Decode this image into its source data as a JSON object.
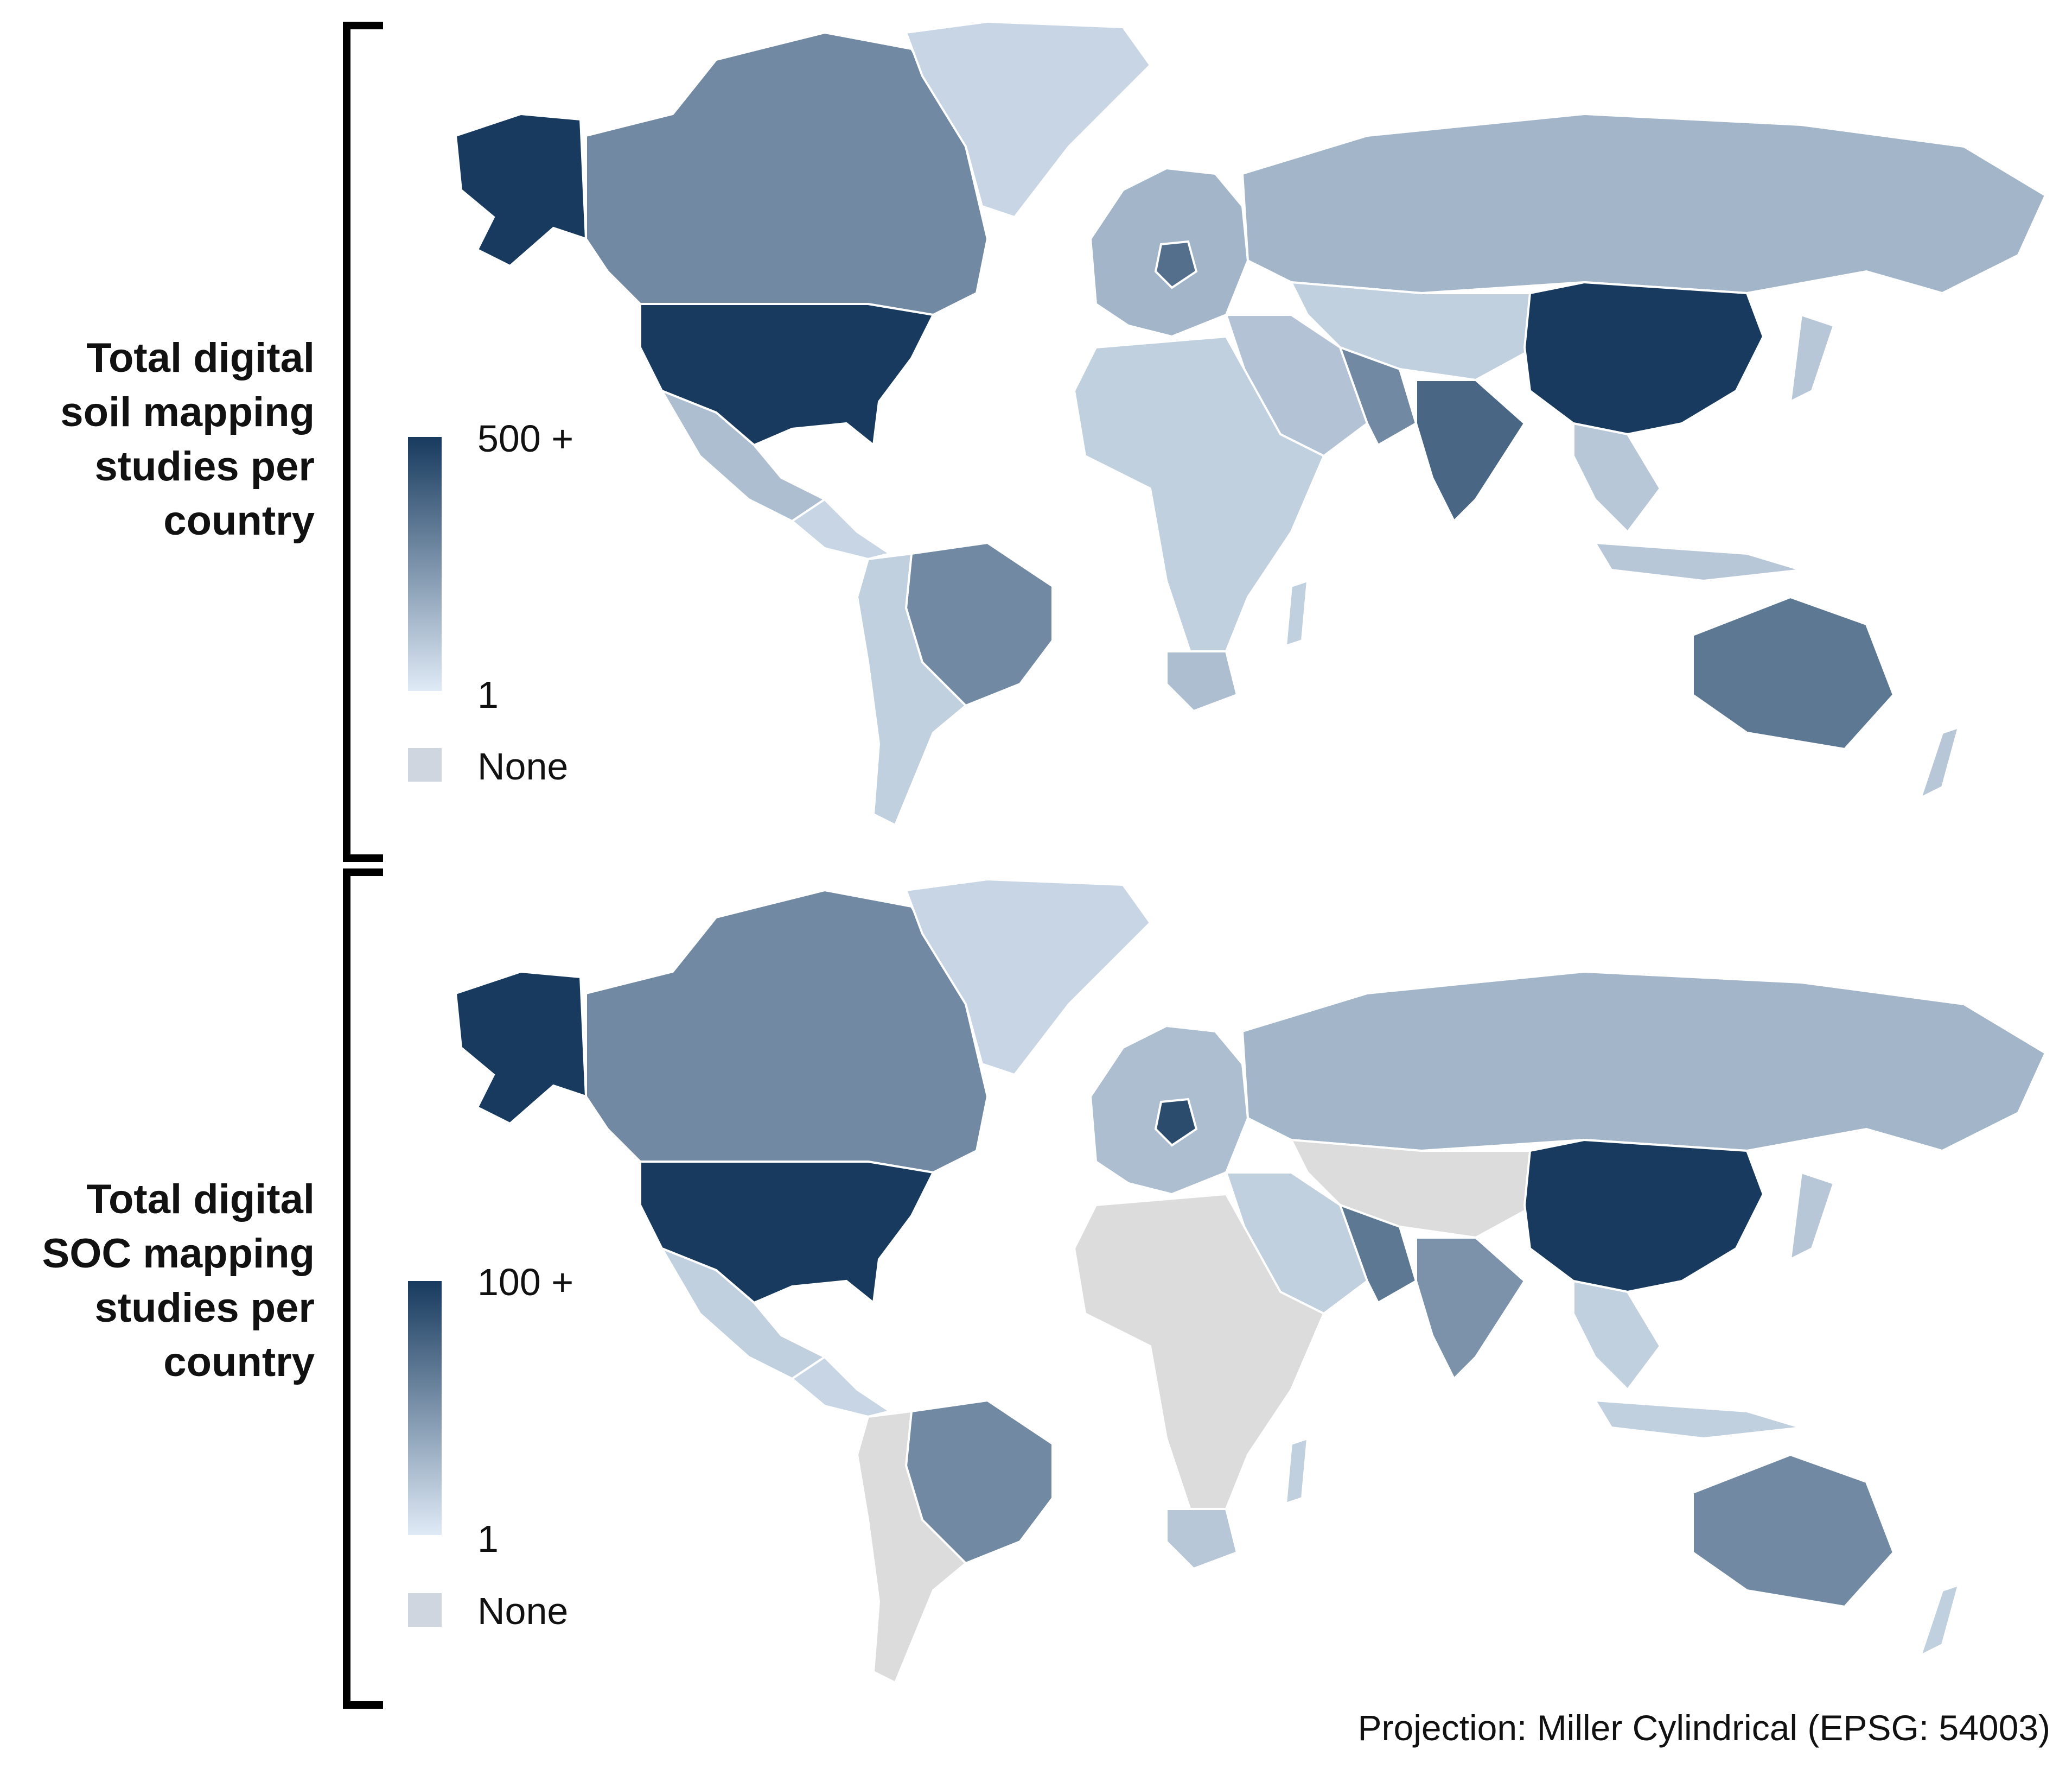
{
  "panels": [
    {
      "title_lines": [
        "Total digital",
        "soil mapping",
        "studies per",
        "country"
      ],
      "legend": {
        "max_label": "500 +",
        "min_label": "1",
        "none_label": "None"
      },
      "countries": {
        "usa": 1.0,
        "alaska": 1.0,
        "china": 1.0,
        "canada": 0.55,
        "greenland": 0.12,
        "mexico": 0.25,
        "central_america": 0.12,
        "brazil": 0.55,
        "south_america_rest": 0.15,
        "europe": 0.3,
        "germany": 0.7,
        "russia": 0.3,
        "central_asia": 0.15,
        "middle_east": 0.22,
        "iran": 0.55,
        "india": 0.75,
        "southeast_asia": 0.2,
        "indonesia": 0.2,
        "africa": 0.15,
        "south_africa": 0.25,
        "madagascar": 0.15,
        "australia": 0.65,
        "new_zealand": 0.2,
        "japan": 0.2
      }
    },
    {
      "title_lines": [
        "Total digital",
        "SOC mapping",
        "studies per",
        "country"
      ],
      "legend": {
        "max_label": "100 +",
        "min_label": "1",
        "none_label": "None"
      },
      "countries": {
        "usa": 1.0,
        "alaska": 1.0,
        "china": 1.0,
        "canada": 0.55,
        "greenland": 0.12,
        "mexico": 0.15,
        "central_america": 0.12,
        "brazil": 0.55,
        "south_america_rest": -1,
        "europe": 0.25,
        "germany": 0.9,
        "russia": 0.3,
        "central_asia": -1,
        "middle_east": 0.15,
        "iran": 0.65,
        "india": 0.5,
        "southeast_asia": 0.15,
        "indonesia": 0.15,
        "africa": -1,
        "south_africa": 0.2,
        "madagascar": 0.15,
        "australia": 0.55,
        "new_zealand": 0.15,
        "japan": 0.2
      }
    }
  ],
  "colors": {
    "high": "#173a5e",
    "low": "#dfeaf6",
    "none": "#dcdcdc",
    "legend_none": "#cfd6df"
  },
  "projection_note": "Projection: Miller Cylindrical (EPSG: 54003)"
}
